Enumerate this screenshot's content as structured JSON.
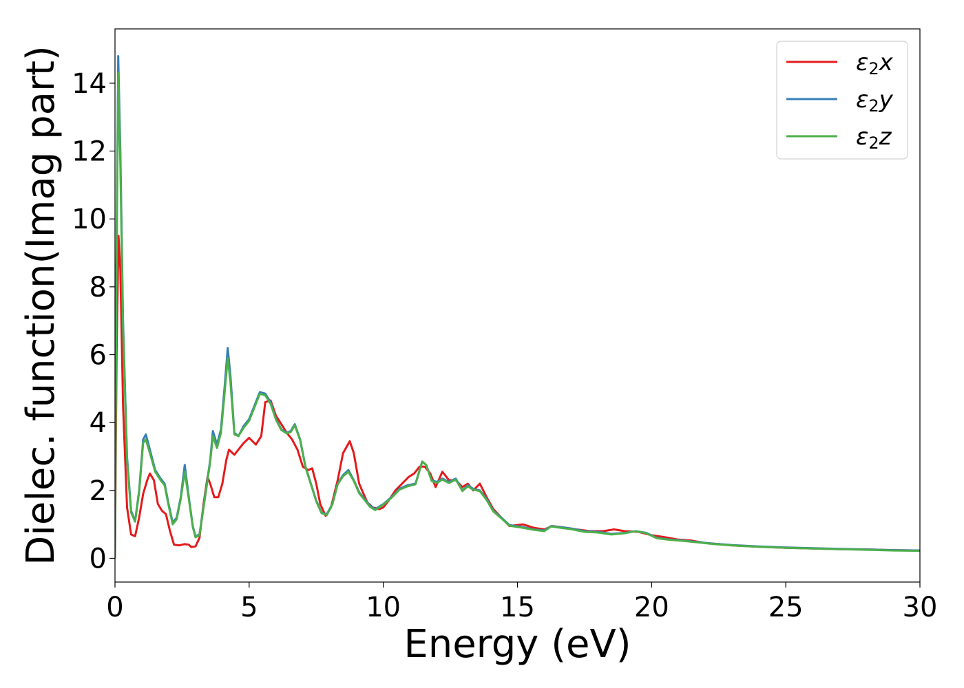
{
  "chart_data": {
    "type": "line",
    "xlabel": "Energy (eV)",
    "ylabel": "Dielec. function(Imag part)",
    "xlim": [
      0,
      30
    ],
    "ylim": [
      -0.7,
      15.6
    ],
    "xticks": [
      0,
      5,
      10,
      15,
      20,
      25,
      30
    ],
    "yticks": [
      0,
      2,
      4,
      6,
      8,
      10,
      12,
      14
    ],
    "grid": false,
    "legend_position": "top-right",
    "series": [
      {
        "name": "ε2x",
        "legend": {
          "base": "ε",
          "sub": "2",
          "var": "x"
        },
        "color": "#e41a1c",
        "points": [
          [
            0,
            0
          ],
          [
            0.06,
            6.0
          ],
          [
            0.13,
            9.5
          ],
          [
            0.2,
            8.5
          ],
          [
            0.3,
            4.5
          ],
          [
            0.45,
            1.5
          ],
          [
            0.6,
            0.7
          ],
          [
            0.75,
            0.65
          ],
          [
            0.9,
            1.2
          ],
          [
            1.05,
            1.9
          ],
          [
            1.2,
            2.3
          ],
          [
            1.3,
            2.5
          ],
          [
            1.45,
            2.3
          ],
          [
            1.6,
            1.6
          ],
          [
            1.75,
            1.4
          ],
          [
            1.9,
            1.3
          ],
          [
            2.05,
            0.8
          ],
          [
            2.2,
            0.4
          ],
          [
            2.4,
            0.38
          ],
          [
            2.6,
            0.42
          ],
          [
            2.75,
            0.4
          ],
          [
            2.85,
            0.33
          ],
          [
            3.0,
            0.35
          ],
          [
            3.15,
            0.6
          ],
          [
            3.3,
            1.6
          ],
          [
            3.45,
            2.4
          ],
          [
            3.55,
            2.2
          ],
          [
            3.7,
            1.8
          ],
          [
            3.85,
            1.8
          ],
          [
            4.0,
            2.2
          ],
          [
            4.15,
            2.9
          ],
          [
            4.25,
            3.2
          ],
          [
            4.45,
            3.05
          ],
          [
            4.6,
            3.2
          ],
          [
            4.8,
            3.4
          ],
          [
            5.0,
            3.55
          ],
          [
            5.25,
            3.35
          ],
          [
            5.45,
            3.6
          ],
          [
            5.6,
            4.6
          ],
          [
            5.8,
            4.65
          ],
          [
            6.0,
            4.2
          ],
          [
            6.2,
            3.95
          ],
          [
            6.4,
            3.7
          ],
          [
            6.6,
            3.5
          ],
          [
            6.8,
            3.2
          ],
          [
            7.0,
            2.7
          ],
          [
            7.2,
            2.6
          ],
          [
            7.35,
            2.65
          ],
          [
            7.5,
            2.2
          ],
          [
            7.65,
            1.6
          ],
          [
            7.85,
            1.25
          ],
          [
            8.05,
            1.5
          ],
          [
            8.3,
            2.3
          ],
          [
            8.5,
            3.1
          ],
          [
            8.75,
            3.45
          ],
          [
            8.9,
            3.1
          ],
          [
            9.1,
            2.2
          ],
          [
            9.4,
            1.65
          ],
          [
            9.6,
            1.5
          ],
          [
            9.85,
            1.45
          ],
          [
            10.0,
            1.5
          ],
          [
            10.2,
            1.7
          ],
          [
            10.45,
            2.0
          ],
          [
            10.7,
            2.2
          ],
          [
            10.95,
            2.4
          ],
          [
            11.15,
            2.5
          ],
          [
            11.35,
            2.7
          ],
          [
            11.55,
            2.7
          ],
          [
            11.75,
            2.5
          ],
          [
            11.95,
            2.1
          ],
          [
            12.2,
            2.55
          ],
          [
            12.45,
            2.3
          ],
          [
            12.7,
            2.3
          ],
          [
            12.95,
            2.1
          ],
          [
            13.15,
            2.2
          ],
          [
            13.35,
            2.0
          ],
          [
            13.6,
            2.2
          ],
          [
            13.85,
            1.8
          ],
          [
            14.1,
            1.45
          ],
          [
            14.4,
            1.2
          ],
          [
            14.7,
            0.95
          ],
          [
            15.2,
            1.0
          ],
          [
            15.6,
            0.9
          ],
          [
            16.0,
            0.85
          ],
          [
            16.3,
            0.95
          ],
          [
            16.8,
            0.9
          ],
          [
            17.2,
            0.85
          ],
          [
            17.7,
            0.8
          ],
          [
            18.2,
            0.8
          ],
          [
            18.6,
            0.85
          ],
          [
            19.0,
            0.8
          ],
          [
            19.5,
            0.78
          ],
          [
            20.0,
            0.68
          ],
          [
            20.5,
            0.62
          ],
          [
            21.0,
            0.55
          ],
          [
            21.5,
            0.52
          ],
          [
            22.0,
            0.45
          ],
          [
            22.5,
            0.42
          ],
          [
            23.0,
            0.38
          ],
          [
            24.0,
            0.34
          ],
          [
            25.0,
            0.31
          ],
          [
            26.0,
            0.29
          ],
          [
            27.0,
            0.27
          ],
          [
            28.0,
            0.26
          ],
          [
            29.0,
            0.24
          ],
          [
            30.0,
            0.23
          ]
        ]
      },
      {
        "name": "ε2y",
        "legend": {
          "base": "ε",
          "sub": "2",
          "var": "y"
        },
        "color": "#377eb8",
        "points": [
          [
            0,
            0
          ],
          [
            0.05,
            8.0
          ],
          [
            0.12,
            14.8
          ],
          [
            0.2,
            12.0
          ],
          [
            0.3,
            7.0
          ],
          [
            0.45,
            3.0
          ],
          [
            0.6,
            1.4
          ],
          [
            0.75,
            1.1
          ],
          [
            0.9,
            2.0
          ],
          [
            1.05,
            3.5
          ],
          [
            1.15,
            3.65
          ],
          [
            1.3,
            3.2
          ],
          [
            1.5,
            2.6
          ],
          [
            1.7,
            2.35
          ],
          [
            1.85,
            2.2
          ],
          [
            2.0,
            1.6
          ],
          [
            2.15,
            1.05
          ],
          [
            2.3,
            1.2
          ],
          [
            2.45,
            1.8
          ],
          [
            2.6,
            2.75
          ],
          [
            2.75,
            1.8
          ],
          [
            2.9,
            0.95
          ],
          [
            3.0,
            0.65
          ],
          [
            3.15,
            0.7
          ],
          [
            3.35,
            1.8
          ],
          [
            3.55,
            2.9
          ],
          [
            3.65,
            3.75
          ],
          [
            3.8,
            3.35
          ],
          [
            3.95,
            3.8
          ],
          [
            4.1,
            5.2
          ],
          [
            4.2,
            6.2
          ],
          [
            4.3,
            5.4
          ],
          [
            4.45,
            3.7
          ],
          [
            4.6,
            3.6
          ],
          [
            4.8,
            3.9
          ],
          [
            5.0,
            4.1
          ],
          [
            5.2,
            4.5
          ],
          [
            5.4,
            4.9
          ],
          [
            5.6,
            4.85
          ],
          [
            5.8,
            4.6
          ],
          [
            6.0,
            4.1
          ],
          [
            6.2,
            3.8
          ],
          [
            6.4,
            3.7
          ],
          [
            6.55,
            3.75
          ],
          [
            6.7,
            3.95
          ],
          [
            6.9,
            3.5
          ],
          [
            7.1,
            2.7
          ],
          [
            7.3,
            2.2
          ],
          [
            7.5,
            1.7
          ],
          [
            7.7,
            1.35
          ],
          [
            7.9,
            1.3
          ],
          [
            8.1,
            1.6
          ],
          [
            8.3,
            2.2
          ],
          [
            8.5,
            2.45
          ],
          [
            8.7,
            2.6
          ],
          [
            8.9,
            2.3
          ],
          [
            9.1,
            1.95
          ],
          [
            9.3,
            1.75
          ],
          [
            9.5,
            1.55
          ],
          [
            9.7,
            1.45
          ],
          [
            10.0,
            1.6
          ],
          [
            10.3,
            1.8
          ],
          [
            10.6,
            2.05
          ],
          [
            10.9,
            2.15
          ],
          [
            11.2,
            2.2
          ],
          [
            11.45,
            2.85
          ],
          [
            11.6,
            2.75
          ],
          [
            11.8,
            2.3
          ],
          [
            12.0,
            2.25
          ],
          [
            12.2,
            2.35
          ],
          [
            12.45,
            2.25
          ],
          [
            12.7,
            2.35
          ],
          [
            12.95,
            2.0
          ],
          [
            13.15,
            2.15
          ],
          [
            13.35,
            2.05
          ],
          [
            13.6,
            2.0
          ],
          [
            13.85,
            1.75
          ],
          [
            14.1,
            1.4
          ],
          [
            14.4,
            1.2
          ],
          [
            14.7,
            0.98
          ],
          [
            15.2,
            0.92
          ],
          [
            15.6,
            0.85
          ],
          [
            16.0,
            0.82
          ],
          [
            16.25,
            0.95
          ],
          [
            16.6,
            0.92
          ],
          [
            17.0,
            0.88
          ],
          [
            17.5,
            0.8
          ],
          [
            18.0,
            0.78
          ],
          [
            18.5,
            0.72
          ],
          [
            19.0,
            0.75
          ],
          [
            19.4,
            0.8
          ],
          [
            19.8,
            0.75
          ],
          [
            20.2,
            0.6
          ],
          [
            20.7,
            0.55
          ],
          [
            21.2,
            0.52
          ],
          [
            21.7,
            0.48
          ],
          [
            22.3,
            0.43
          ],
          [
            23.0,
            0.39
          ],
          [
            24.0,
            0.35
          ],
          [
            25.0,
            0.32
          ],
          [
            26.0,
            0.3
          ],
          [
            27.0,
            0.28
          ],
          [
            28.0,
            0.26
          ],
          [
            29.0,
            0.24
          ],
          [
            30.0,
            0.23
          ]
        ]
      },
      {
        "name": "ε2z",
        "legend": {
          "base": "ε",
          "sub": "2",
          "var": "z"
        },
        "color": "#4daf4a",
        "points": [
          [
            0,
            0
          ],
          [
            0.05,
            7.6
          ],
          [
            0.12,
            14.3
          ],
          [
            0.2,
            11.6
          ],
          [
            0.3,
            6.8
          ],
          [
            0.45,
            2.9
          ],
          [
            0.6,
            1.35
          ],
          [
            0.75,
            1.08
          ],
          [
            0.9,
            1.95
          ],
          [
            1.05,
            3.4
          ],
          [
            1.15,
            3.5
          ],
          [
            1.3,
            3.1
          ],
          [
            1.5,
            2.55
          ],
          [
            1.7,
            2.3
          ],
          [
            1.85,
            2.15
          ],
          [
            2.0,
            1.55
          ],
          [
            2.15,
            1.0
          ],
          [
            2.3,
            1.15
          ],
          [
            2.45,
            1.75
          ],
          [
            2.6,
            2.55
          ],
          [
            2.75,
            1.75
          ],
          [
            2.9,
            0.92
          ],
          [
            3.0,
            0.62
          ],
          [
            3.15,
            0.68
          ],
          [
            3.35,
            1.75
          ],
          [
            3.55,
            2.85
          ],
          [
            3.65,
            3.6
          ],
          [
            3.8,
            3.25
          ],
          [
            3.95,
            3.7
          ],
          [
            4.1,
            5.0
          ],
          [
            4.2,
            5.9
          ],
          [
            4.3,
            5.2
          ],
          [
            4.45,
            3.65
          ],
          [
            4.6,
            3.6
          ],
          [
            4.8,
            3.85
          ],
          [
            5.0,
            4.05
          ],
          [
            5.2,
            4.45
          ],
          [
            5.4,
            4.85
          ],
          [
            5.6,
            4.8
          ],
          [
            5.8,
            4.55
          ],
          [
            6.0,
            4.08
          ],
          [
            6.2,
            3.78
          ],
          [
            6.4,
            3.68
          ],
          [
            6.55,
            3.72
          ],
          [
            6.7,
            3.92
          ],
          [
            6.9,
            3.48
          ],
          [
            7.1,
            2.68
          ],
          [
            7.3,
            2.18
          ],
          [
            7.5,
            1.68
          ],
          [
            7.7,
            1.33
          ],
          [
            7.9,
            1.28
          ],
          [
            8.1,
            1.58
          ],
          [
            8.3,
            2.18
          ],
          [
            8.5,
            2.42
          ],
          [
            8.7,
            2.55
          ],
          [
            8.9,
            2.28
          ],
          [
            9.1,
            1.92
          ],
          [
            9.3,
            1.72
          ],
          [
            9.5,
            1.52
          ],
          [
            9.7,
            1.42
          ],
          [
            10.0,
            1.58
          ],
          [
            10.3,
            1.78
          ],
          [
            10.6,
            2.02
          ],
          [
            10.9,
            2.12
          ],
          [
            11.2,
            2.18
          ],
          [
            11.45,
            2.85
          ],
          [
            11.6,
            2.75
          ],
          [
            11.8,
            2.28
          ],
          [
            12.0,
            2.22
          ],
          [
            12.2,
            2.32
          ],
          [
            12.45,
            2.22
          ],
          [
            12.7,
            2.32
          ],
          [
            12.95,
            1.98
          ],
          [
            13.15,
            2.12
          ],
          [
            13.35,
            2.02
          ],
          [
            13.6,
            1.98
          ],
          [
            13.85,
            1.72
          ],
          [
            14.1,
            1.38
          ],
          [
            14.4,
            1.18
          ],
          [
            14.7,
            0.96
          ],
          [
            15.2,
            0.9
          ],
          [
            15.6,
            0.84
          ],
          [
            16.0,
            0.8
          ],
          [
            16.25,
            0.94
          ],
          [
            16.6,
            0.9
          ],
          [
            17.0,
            0.86
          ],
          [
            17.5,
            0.78
          ],
          [
            18.0,
            0.76
          ],
          [
            18.5,
            0.7
          ],
          [
            19.0,
            0.74
          ],
          [
            19.4,
            0.8
          ],
          [
            19.8,
            0.74
          ],
          [
            20.2,
            0.59
          ],
          [
            20.7,
            0.54
          ],
          [
            21.2,
            0.51
          ],
          [
            21.7,
            0.47
          ],
          [
            22.3,
            0.42
          ],
          [
            23.0,
            0.38
          ],
          [
            24.0,
            0.34
          ],
          [
            25.0,
            0.31
          ],
          [
            26.0,
            0.29
          ],
          [
            27.0,
            0.27
          ],
          [
            28.0,
            0.25
          ],
          [
            29.0,
            0.23
          ],
          [
            30.0,
            0.22
          ]
        ]
      }
    ]
  }
}
